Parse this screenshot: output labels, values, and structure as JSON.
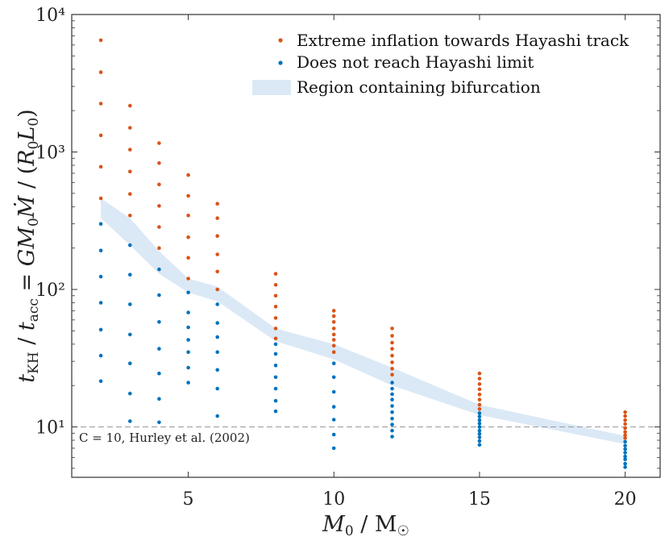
{
  "chart_data": {
    "type": "scatter",
    "xlabel": "M0 / M☉",
    "ylabel": "tKH / tacc = GM0Ṁ / (R0L0)",
    "xscale": "linear",
    "yscale": "log",
    "xlim": [
      1,
      21.2
    ],
    "ylim": [
      4.3,
      10000
    ],
    "xticks": [
      5,
      10,
      15,
      20
    ],
    "xtick_labels": [
      "5",
      "10",
      "15",
      "20"
    ],
    "yticks": [
      10,
      100,
      1000,
      10000
    ],
    "ytick_labels": [
      "10¹",
      "10²",
      "10³",
      "10⁴"
    ],
    "colors": {
      "inflation": "#d95319",
      "no_reach": "#0072bd",
      "region": "#dbe9f6",
      "reference": "#999999",
      "frame": "#333333"
    },
    "series": [
      {
        "name": "Extreme inflation towards Hayashi track",
        "color": "#d95319",
        "points": [
          [
            2,
            6500
          ],
          [
            2,
            3800
          ],
          [
            2,
            2250
          ],
          [
            2,
            1320
          ],
          [
            2,
            780
          ],
          [
            2,
            460
          ],
          [
            3,
            2170
          ],
          [
            3,
            1500
          ],
          [
            3,
            1040
          ],
          [
            3,
            720
          ],
          [
            3,
            495
          ],
          [
            3,
            345
          ],
          [
            4,
            1160
          ],
          [
            4,
            830
          ],
          [
            4,
            580
          ],
          [
            4,
            405
          ],
          [
            4,
            285
          ],
          [
            4,
            200
          ],
          [
            5,
            680
          ],
          [
            5,
            480
          ],
          [
            5,
            345
          ],
          [
            5,
            240
          ],
          [
            5,
            170
          ],
          [
            5,
            120
          ],
          [
            6,
            420
          ],
          [
            6,
            330
          ],
          [
            6,
            245
          ],
          [
            6,
            180
          ],
          [
            6,
            135
          ],
          [
            6,
            100
          ],
          [
            8,
            130
          ],
          [
            8,
            108
          ],
          [
            8,
            90
          ],
          [
            8,
            75
          ],
          [
            8,
            62
          ],
          [
            8,
            52
          ],
          [
            8,
            44
          ],
          [
            10,
            70
          ],
          [
            10,
            64
          ],
          [
            10,
            58
          ],
          [
            10,
            52
          ],
          [
            10,
            47
          ],
          [
            10,
            43
          ],
          [
            10,
            39
          ],
          [
            10,
            35
          ],
          [
            12,
            52
          ],
          [
            12,
            46
          ],
          [
            12,
            41
          ],
          [
            12,
            37
          ],
          [
            12,
            33
          ],
          [
            12,
            29.5
          ],
          [
            12,
            26.5
          ],
          [
            12,
            24
          ],
          [
            15,
            24.5
          ],
          [
            15,
            22.5
          ],
          [
            15,
            20.5
          ],
          [
            15,
            18.8
          ],
          [
            15,
            17.2
          ],
          [
            15,
            15.8
          ],
          [
            15,
            14.5
          ],
          [
            15,
            13.5
          ],
          [
            20,
            12.8
          ],
          [
            20,
            12
          ],
          [
            20,
            11.2
          ],
          [
            20,
            10.5
          ],
          [
            20,
            9.8
          ],
          [
            20,
            9.2
          ],
          [
            20,
            8.7
          ],
          [
            20,
            8.3
          ]
        ]
      },
      {
        "name": "Does not reach Hayashi limit",
        "color": "#0072bd",
        "points": [
          [
            2,
            300
          ],
          [
            2,
            192
          ],
          [
            2,
            124
          ],
          [
            2,
            80
          ],
          [
            2,
            51
          ],
          [
            2,
            33
          ],
          [
            2,
            21.5
          ],
          [
            3,
            210
          ],
          [
            3,
            128
          ],
          [
            3,
            78
          ],
          [
            3,
            47
          ],
          [
            3,
            29
          ],
          [
            3,
            17.5
          ],
          [
            3,
            11
          ],
          [
            4,
            140
          ],
          [
            4,
            91
          ],
          [
            4,
            58
          ],
          [
            4,
            37
          ],
          [
            4,
            24.5
          ],
          [
            4,
            16
          ],
          [
            4,
            10.8
          ],
          [
            5,
            95
          ],
          [
            5,
            68
          ],
          [
            5,
            53
          ],
          [
            5,
            43
          ],
          [
            5,
            35
          ],
          [
            5,
            27
          ],
          [
            5,
            21
          ],
          [
            6,
            78
          ],
          [
            6,
            57
          ],
          [
            6,
            45
          ],
          [
            6,
            35
          ],
          [
            6,
            26
          ],
          [
            6,
            19
          ],
          [
            6,
            12
          ],
          [
            8,
            40
          ],
          [
            8,
            34
          ],
          [
            8,
            28
          ],
          [
            8,
            23
          ],
          [
            8,
            19
          ],
          [
            8,
            15.5
          ],
          [
            8,
            13
          ],
          [
            10,
            29
          ],
          [
            10,
            23
          ],
          [
            10,
            18
          ],
          [
            10,
            14
          ],
          [
            10,
            11.3
          ],
          [
            10,
            8.8
          ],
          [
            10,
            7
          ],
          [
            12,
            21
          ],
          [
            12,
            19
          ],
          [
            12,
            17.3
          ],
          [
            12,
            15.8
          ],
          [
            12,
            14.2
          ],
          [
            12,
            12.8
          ],
          [
            12,
            11.5
          ],
          [
            12,
            10.4
          ],
          [
            12,
            9.4
          ],
          [
            12,
            8.5
          ],
          [
            15,
            12.6
          ],
          [
            15,
            11.9
          ],
          [
            15,
            11.2
          ],
          [
            15,
            10.6
          ],
          [
            15,
            10
          ],
          [
            15,
            9.4
          ],
          [
            15,
            8.9
          ],
          [
            15,
            8.4
          ],
          [
            15,
            7.9
          ],
          [
            15,
            7.4
          ],
          [
            20,
            7.8
          ],
          [
            20,
            7.3
          ],
          [
            20,
            6.9
          ],
          [
            20,
            6.5
          ],
          [
            20,
            6.1
          ],
          [
            20,
            5.8
          ],
          [
            20,
            5.4
          ],
          [
            20,
            5.1
          ]
        ]
      }
    ],
    "region": {
      "name": "Region containing bifurcation",
      "upper": [
        [
          2,
          460
        ],
        [
          3,
          330
        ],
        [
          4,
          190
        ],
        [
          5,
          120
        ],
        [
          6,
          105
        ],
        [
          8,
          52
        ],
        [
          10,
          40
        ],
        [
          12,
          27
        ],
        [
          15,
          14.5
        ],
        [
          20,
          8.6
        ]
      ],
      "lower": [
        [
          2,
          330
        ],
        [
          3,
          210
        ],
        [
          4,
          130
        ],
        [
          5,
          95
        ],
        [
          6,
          82
        ],
        [
          8,
          42
        ],
        [
          10,
          31
        ],
        [
          12,
          20
        ],
        [
          15,
          12.2
        ],
        [
          20,
          7.5
        ]
      ]
    },
    "reference_line": {
      "y": 10,
      "label": "C = 10, Hurley et al. (2002)"
    },
    "legend": {
      "position": "top-right",
      "entries": [
        "Extreme inflation towards Hayashi track",
        "Does not reach Hayashi limit",
        "Region containing bifurcation"
      ]
    }
  }
}
